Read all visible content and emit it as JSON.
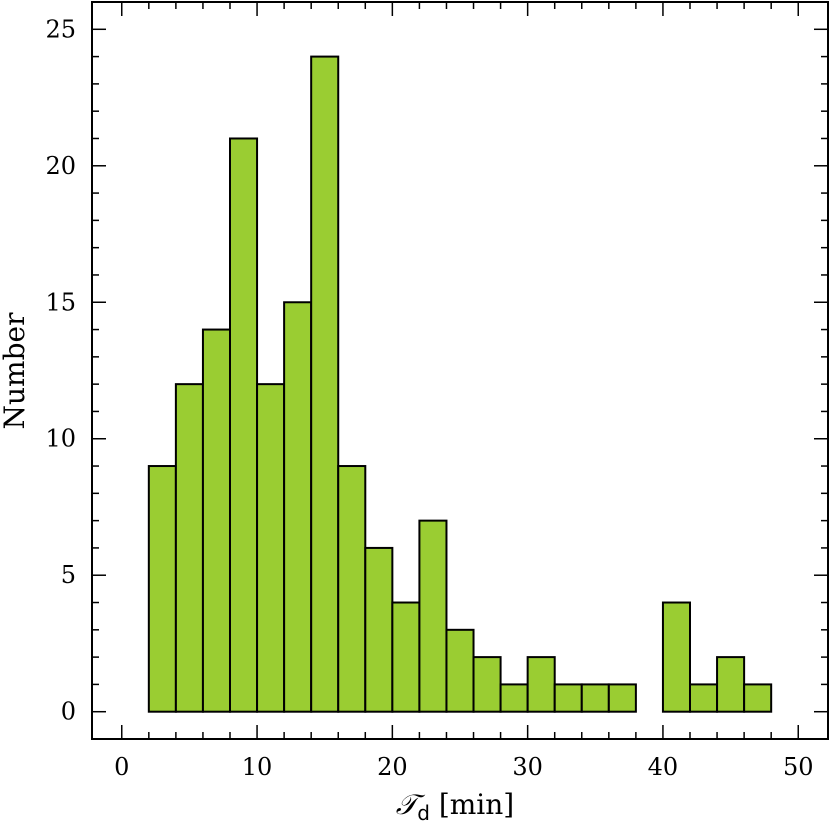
{
  "chart_data": {
    "type": "bar",
    "histogram": true,
    "bin_width": 2,
    "bins_start": [
      2,
      4,
      6,
      8,
      10,
      12,
      14,
      16,
      18,
      20,
      22,
      24,
      26,
      28,
      30,
      32,
      34,
      36,
      38,
      40,
      42,
      44,
      46
    ],
    "values": [
      9,
      12,
      14,
      21,
      12,
      15,
      24,
      9,
      6,
      4,
      7,
      3,
      2,
      1,
      2,
      1,
      1,
      1,
      0,
      4,
      1,
      2,
      1
    ],
    "xlabel_main": "𝒯",
    "xlabel_sub": "d",
    "xlabel_unit": " [min]",
    "ylabel": "Number",
    "xlim": [
      -2.2,
      52.2
    ],
    "ylim": [
      -1,
      26
    ],
    "xticks": [
      0,
      10,
      20,
      30,
      40,
      50
    ],
    "yticks": [
      0,
      5,
      10,
      15,
      20,
      25
    ],
    "bar_color": "#9acd32",
    "grid": false
  }
}
